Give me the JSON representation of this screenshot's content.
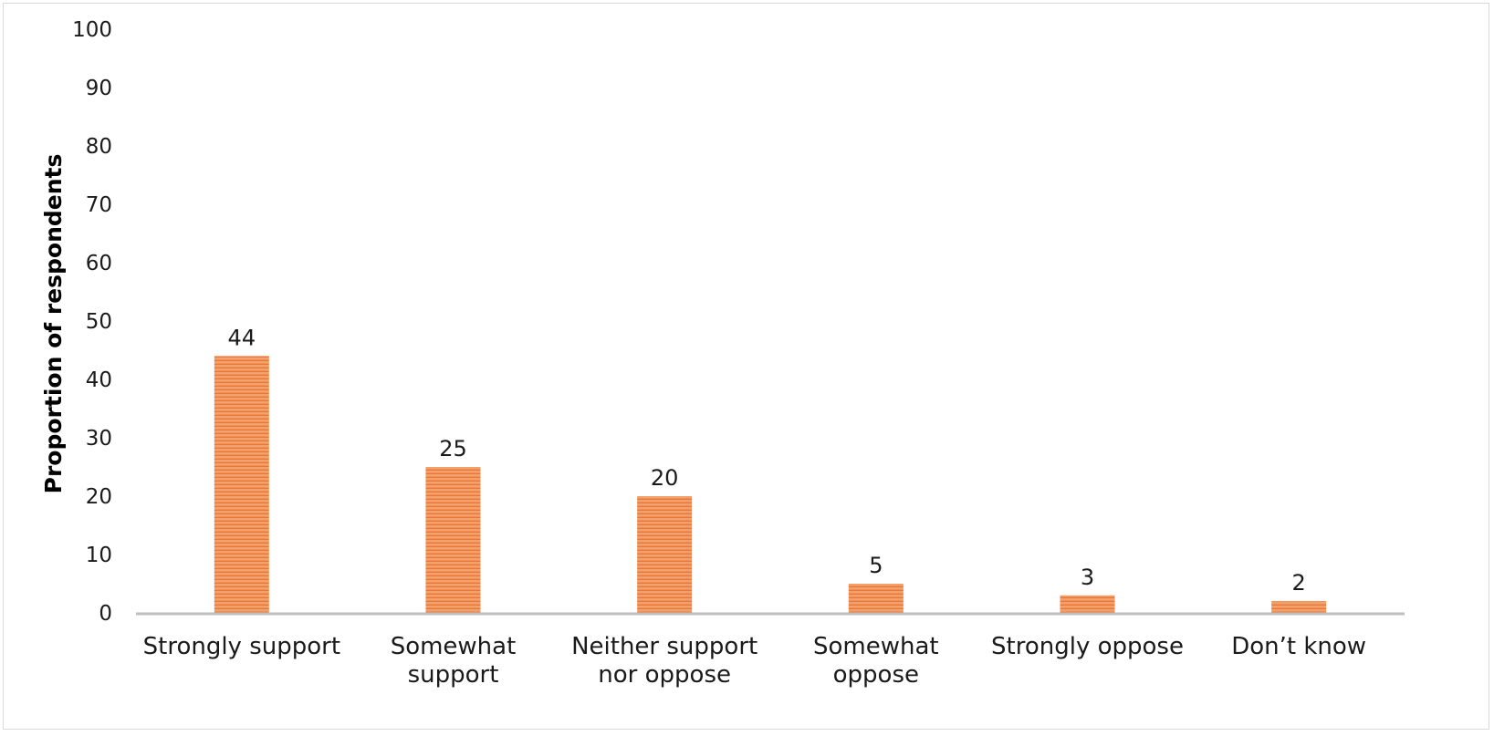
{
  "chart_data": {
    "type": "bar",
    "title": "",
    "xlabel": "",
    "ylabel": "Proportion of respondents",
    "ylim": [
      0,
      100
    ],
    "yticks": [
      "0",
      "10",
      "20",
      "30",
      "40",
      "50",
      "60",
      "70",
      "80",
      "90",
      "100"
    ],
    "categories": [
      [
        "Strongly support"
      ],
      [
        "Somewhat",
        "support"
      ],
      [
        "Neither support",
        "nor oppose"
      ],
      [
        "Somewhat",
        "oppose"
      ],
      [
        "Strongly oppose"
      ],
      [
        "Don’t know"
      ]
    ],
    "values": [
      44,
      25,
      20,
      5,
      3,
      2
    ],
    "data_labels": [
      "44",
      "25",
      "20",
      "5",
      "3",
      "2"
    ],
    "bar_color": "#f4a06b",
    "bar_stripe_color": "#e8773a",
    "bar_pattern": "horizontal-stripes",
    "axis_color": "#bfbfbf",
    "grid": false,
    "legend": "none"
  }
}
